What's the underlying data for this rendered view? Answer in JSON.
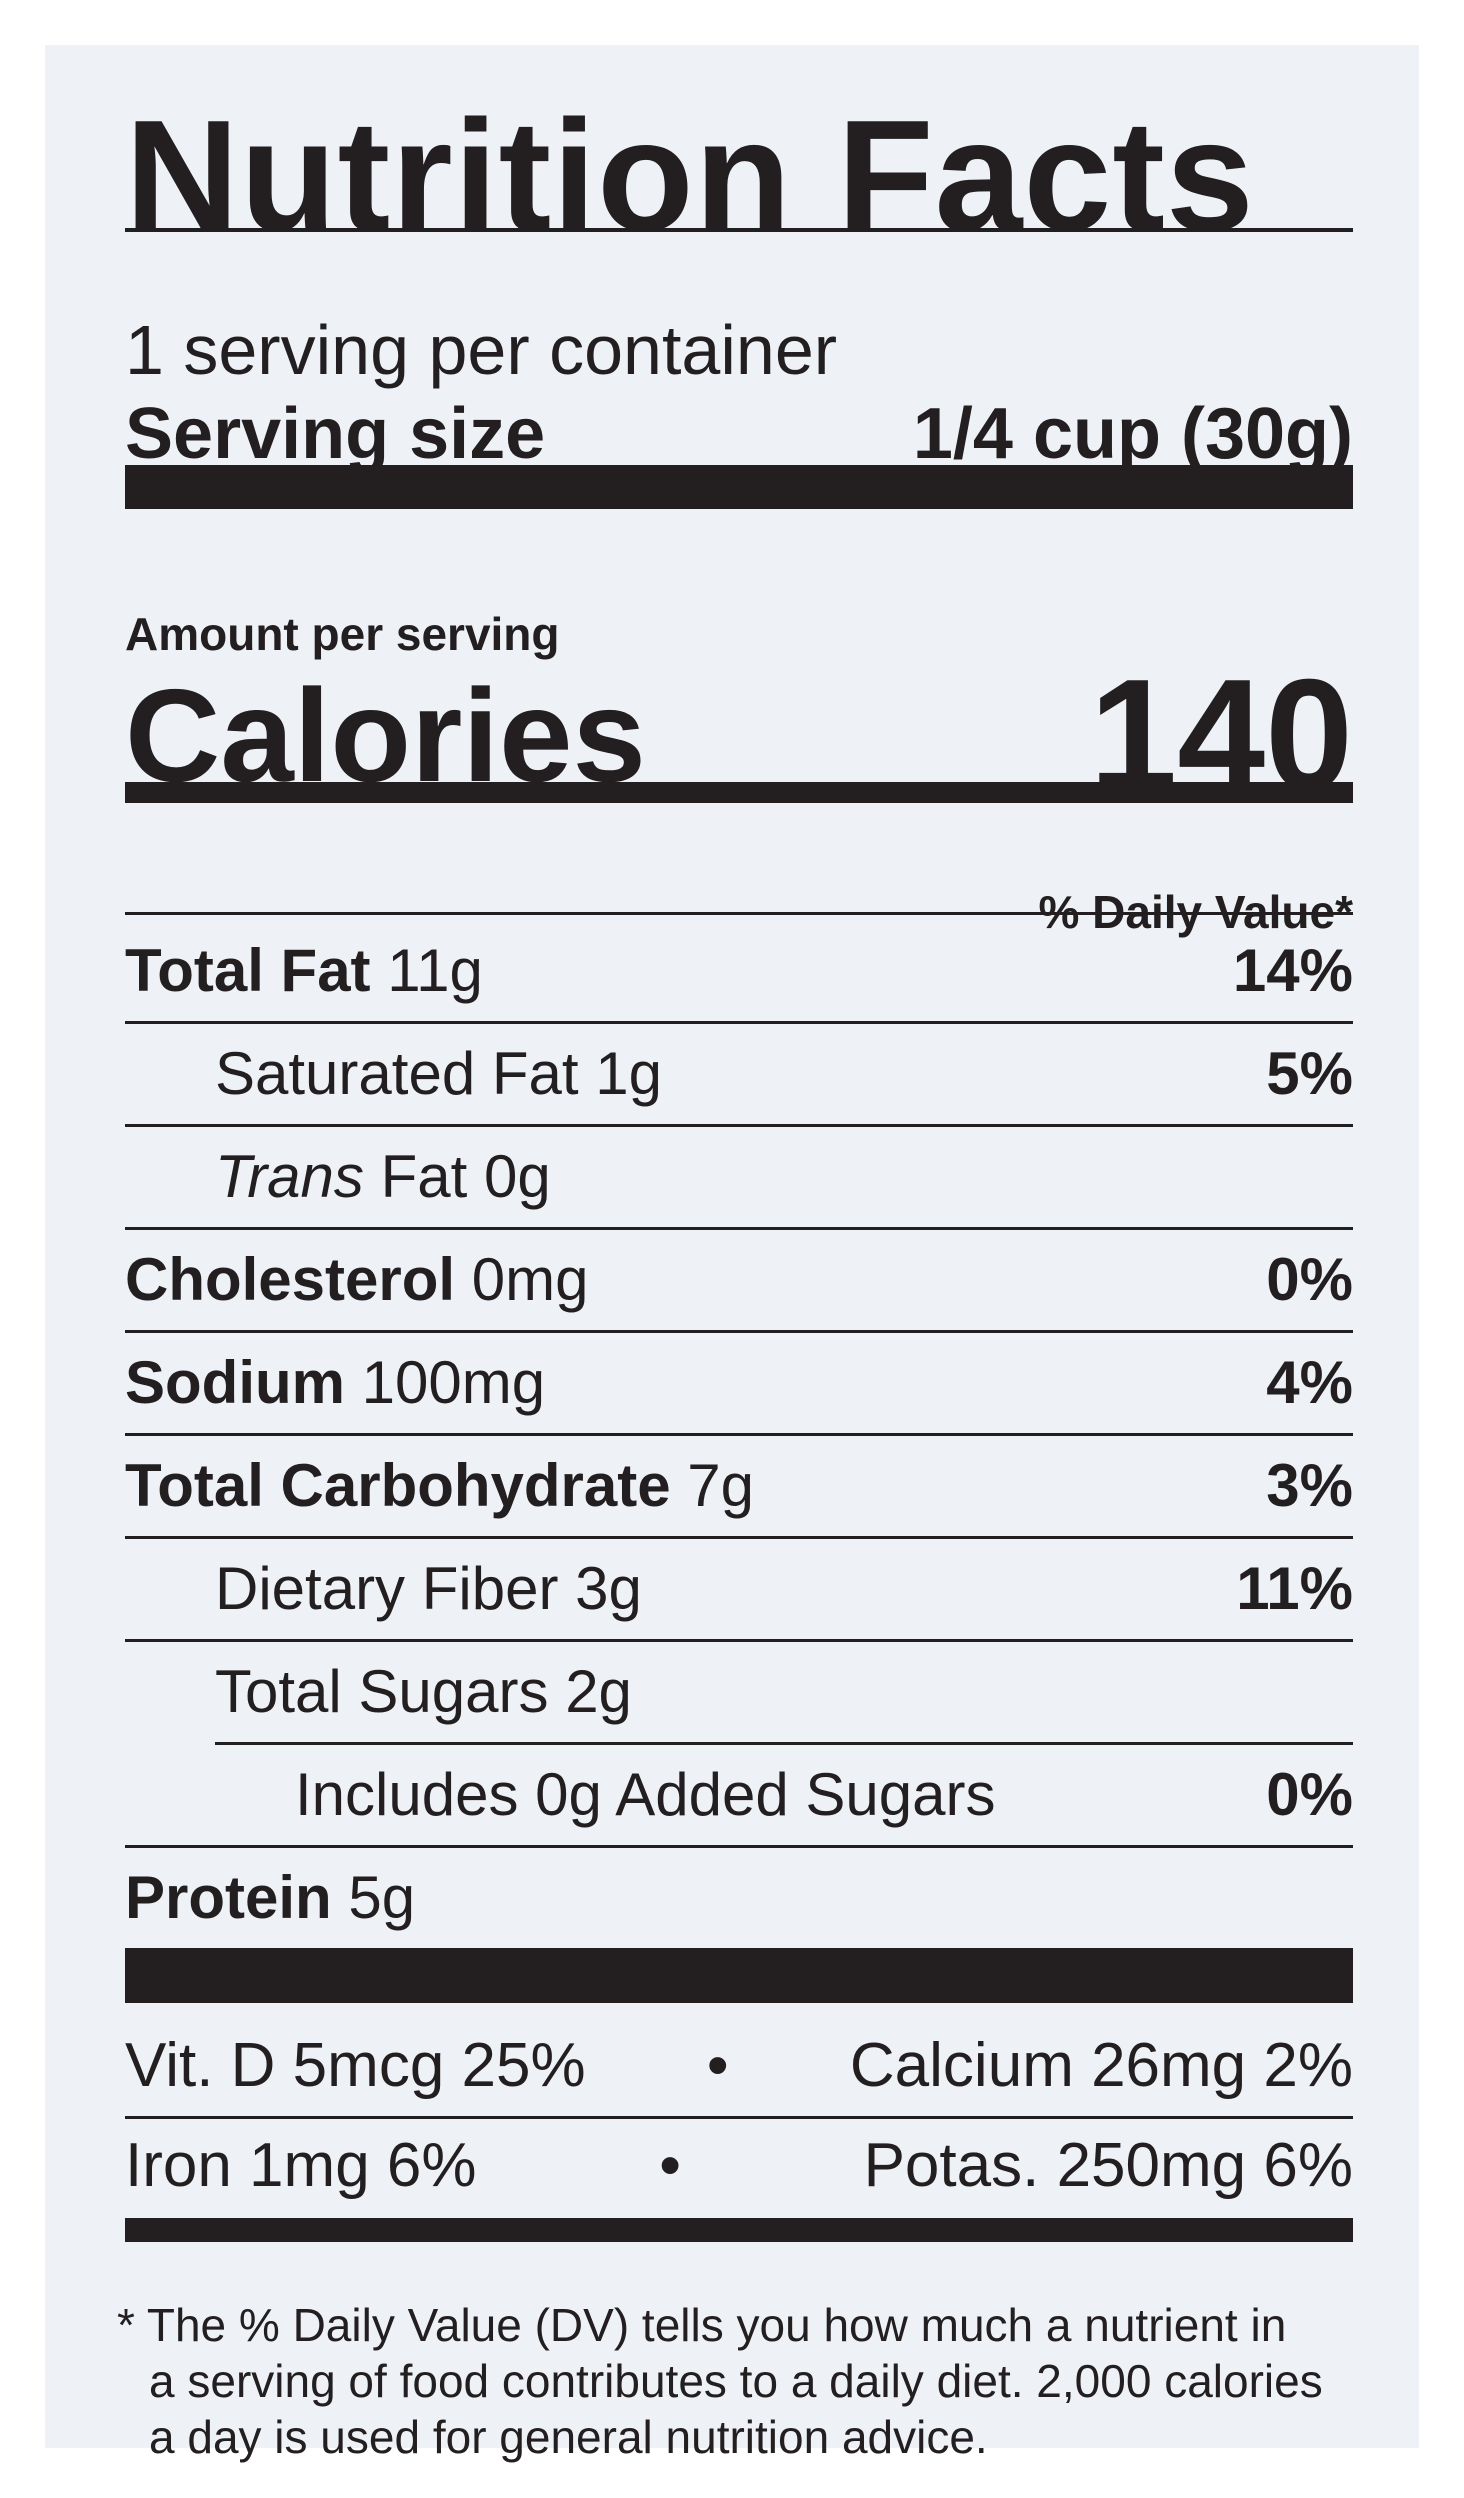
{
  "label": {
    "title": "Nutrition Facts",
    "servings_per_container": "1 serving per container",
    "serving_size_label": "Serving size",
    "serving_size_value": "1/4 cup (30g)",
    "amount_per_serving": "Amount per serving",
    "calories_label": "Calories",
    "calories_value": "140",
    "daily_value_header": "% Daily Value*",
    "nutrients": [
      {
        "name": "Total Fat",
        "amount": "11g",
        "dv": "14%"
      },
      {
        "name": "Saturated Fat",
        "amount": "1g",
        "dv": "5%"
      },
      {
        "name_italic": "Trans",
        "name": "Fat",
        "amount": "0g",
        "dv": ""
      },
      {
        "name": "Cholesterol",
        "amount": "0mg",
        "dv": "0%"
      },
      {
        "name": "Sodium",
        "amount": "100mg",
        "dv": "4%"
      },
      {
        "name": "Total Carbohydrate",
        "amount": "7g",
        "dv": "3%"
      },
      {
        "name": "Dietary Fiber",
        "amount": "3g",
        "dv": "11%"
      },
      {
        "name": "Total Sugars",
        "amount": "2g",
        "dv": ""
      },
      {
        "name": "Includes 0g Added Sugars",
        "amount": "",
        "dv": "0%"
      },
      {
        "name": "Protein",
        "amount": "5g",
        "dv": ""
      }
    ],
    "vitamins": [
      {
        "left": "Vit. D 5mcg 25%",
        "bullet": "•",
        "right": "Calcium 26mg 2%"
      },
      {
        "left": "Iron 1mg 6%",
        "bullet": "•",
        "right": "Potas. 250mg 6%"
      }
    ],
    "footnote": [
      "* The % Daily Value (DV) tells you how much a nutrient in",
      "a serving of food contributes to a daily diet. 2,000 calories",
      "a day is used for general nutrition advice."
    ]
  },
  "colors": {
    "panel_background": "#eef2f7",
    "ink": "#231f20"
  }
}
